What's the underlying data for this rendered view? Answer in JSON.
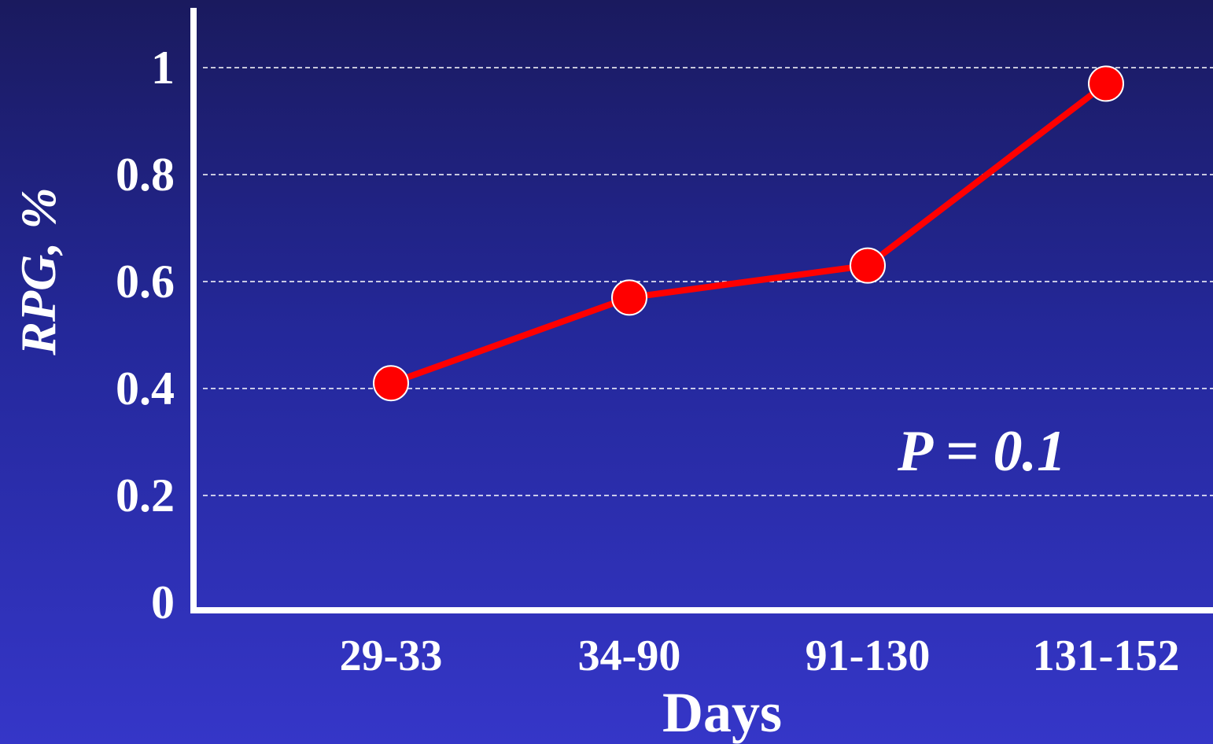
{
  "chart_data": {
    "type": "line",
    "categories": [
      "29-33",
      "34-90",
      "91-130",
      "131-152"
    ],
    "series": [
      {
        "values": [
          0.41,
          0.57,
          0.63,
          0.97
        ]
      }
    ],
    "xlabel": "Days",
    "ylabel": "RPG, %",
    "ylim": [
      0,
      1.1
    ],
    "yticks": [
      0,
      0.2,
      0.4,
      0.6,
      0.8,
      1
    ],
    "ytick_labels": [
      "0",
      "0.2",
      "0.4",
      "0.6",
      "0.8",
      "1"
    ],
    "gridlines": [
      0.2,
      0.4,
      0.6,
      0.8,
      1
    ],
    "grid": true,
    "annotation": "P = 0.1",
    "colors": {
      "line": "#ff0000",
      "marker": "#ff0000",
      "marker_edge": "#ffffff",
      "axis": "#ffffff",
      "grid": "#ffffff"
    }
  }
}
